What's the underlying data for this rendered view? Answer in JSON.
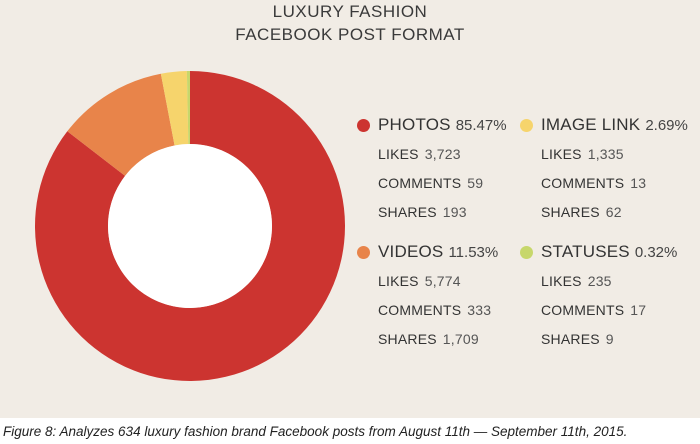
{
  "chart_data": {
    "type": "pie",
    "title_lines": [
      "LUXURY FASHION",
      "FACEBOOK POST FORMAT"
    ],
    "slices": [
      {
        "name": "PHOTOS",
        "pct_label": "85.47%",
        "value": 85.47,
        "color": "#cc3430",
        "stats": [
          {
            "label": "LIKES",
            "value": "3,723"
          },
          {
            "label": "COMMENTS",
            "value": "59"
          },
          {
            "label": "SHARES",
            "value": "193"
          }
        ]
      },
      {
        "name": "VIDEOS",
        "pct_label": "11.53%",
        "value": 11.53,
        "color": "#e8844a",
        "stats": [
          {
            "label": "LIKES",
            "value": "5,774"
          },
          {
            "label": "COMMENTS",
            "value": "333"
          },
          {
            "label": "SHARES",
            "value": "1,709"
          }
        ]
      },
      {
        "name": "IMAGE LINK",
        "pct_label": "2.69%",
        "value": 2.69,
        "color": "#f6d46c",
        "stats": [
          {
            "label": "LIKES",
            "value": "1,335"
          },
          {
            "label": "COMMENTS",
            "value": "13"
          },
          {
            "label": "SHARES",
            "value": "62"
          }
        ]
      },
      {
        "name": "STATUSES",
        "pct_label": "0.32%",
        "value": 0.32,
        "color": "#c7d76b",
        "stats": [
          {
            "label": "LIKES",
            "value": "235"
          },
          {
            "label": "COMMENTS",
            "value": "17"
          },
          {
            "label": "SHARES",
            "value": "9"
          }
        ]
      }
    ],
    "slice_order_clockwise_from_top": [
      "PHOTOS",
      "VIDEOS",
      "IMAGE LINK",
      "STATUSES"
    ]
  },
  "caption": "Figure 8: Analyzes 634 luxury fashion brand Facebook posts from August 11th — September 11th, 2015."
}
